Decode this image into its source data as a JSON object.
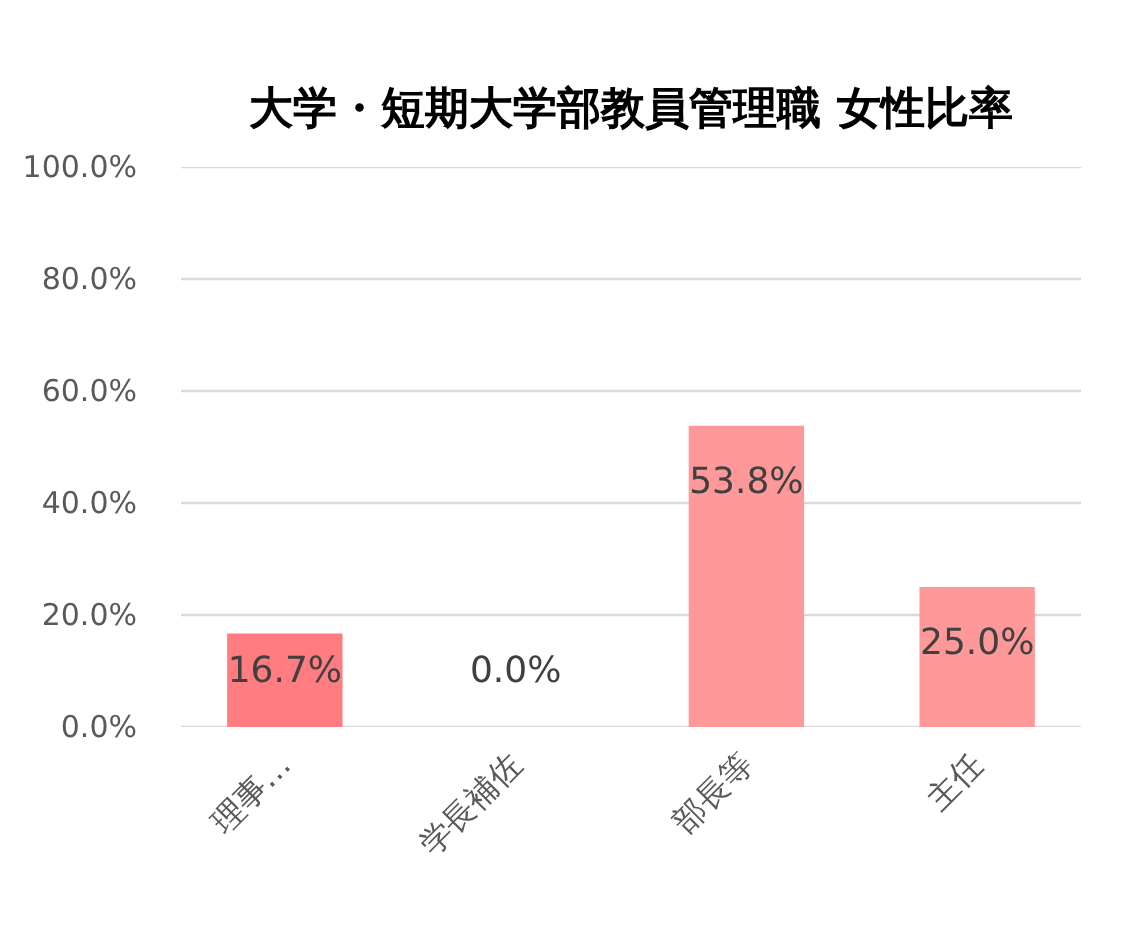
{
  "chart_data": {
    "type": "bar",
    "title": "大学・短期大学部教員管理職 女性比率",
    "categories": [
      "理事…",
      "学長補佐",
      "部長等",
      "主任"
    ],
    "values": [
      16.7,
      0.0,
      53.8,
      25.0
    ],
    "colors": [
      "#ff7c80",
      "#ff9999",
      "#ff9999",
      "#ff9999"
    ],
    "value_labels": [
      "16.7%",
      "0.0%",
      "53.8%",
      "25.0%"
    ],
    "ylim": [
      0,
      100
    ],
    "yticks": [
      {
        "value": 0,
        "label": "0.0%"
      },
      {
        "value": 20,
        "label": "20.0%"
      },
      {
        "value": 40,
        "label": "40.0%"
      },
      {
        "value": 60,
        "label": "60.0%"
      },
      {
        "value": 80,
        "label": "80.0%"
      },
      {
        "value": 100,
        "label": "100.0%"
      }
    ],
    "grid": "y"
  }
}
